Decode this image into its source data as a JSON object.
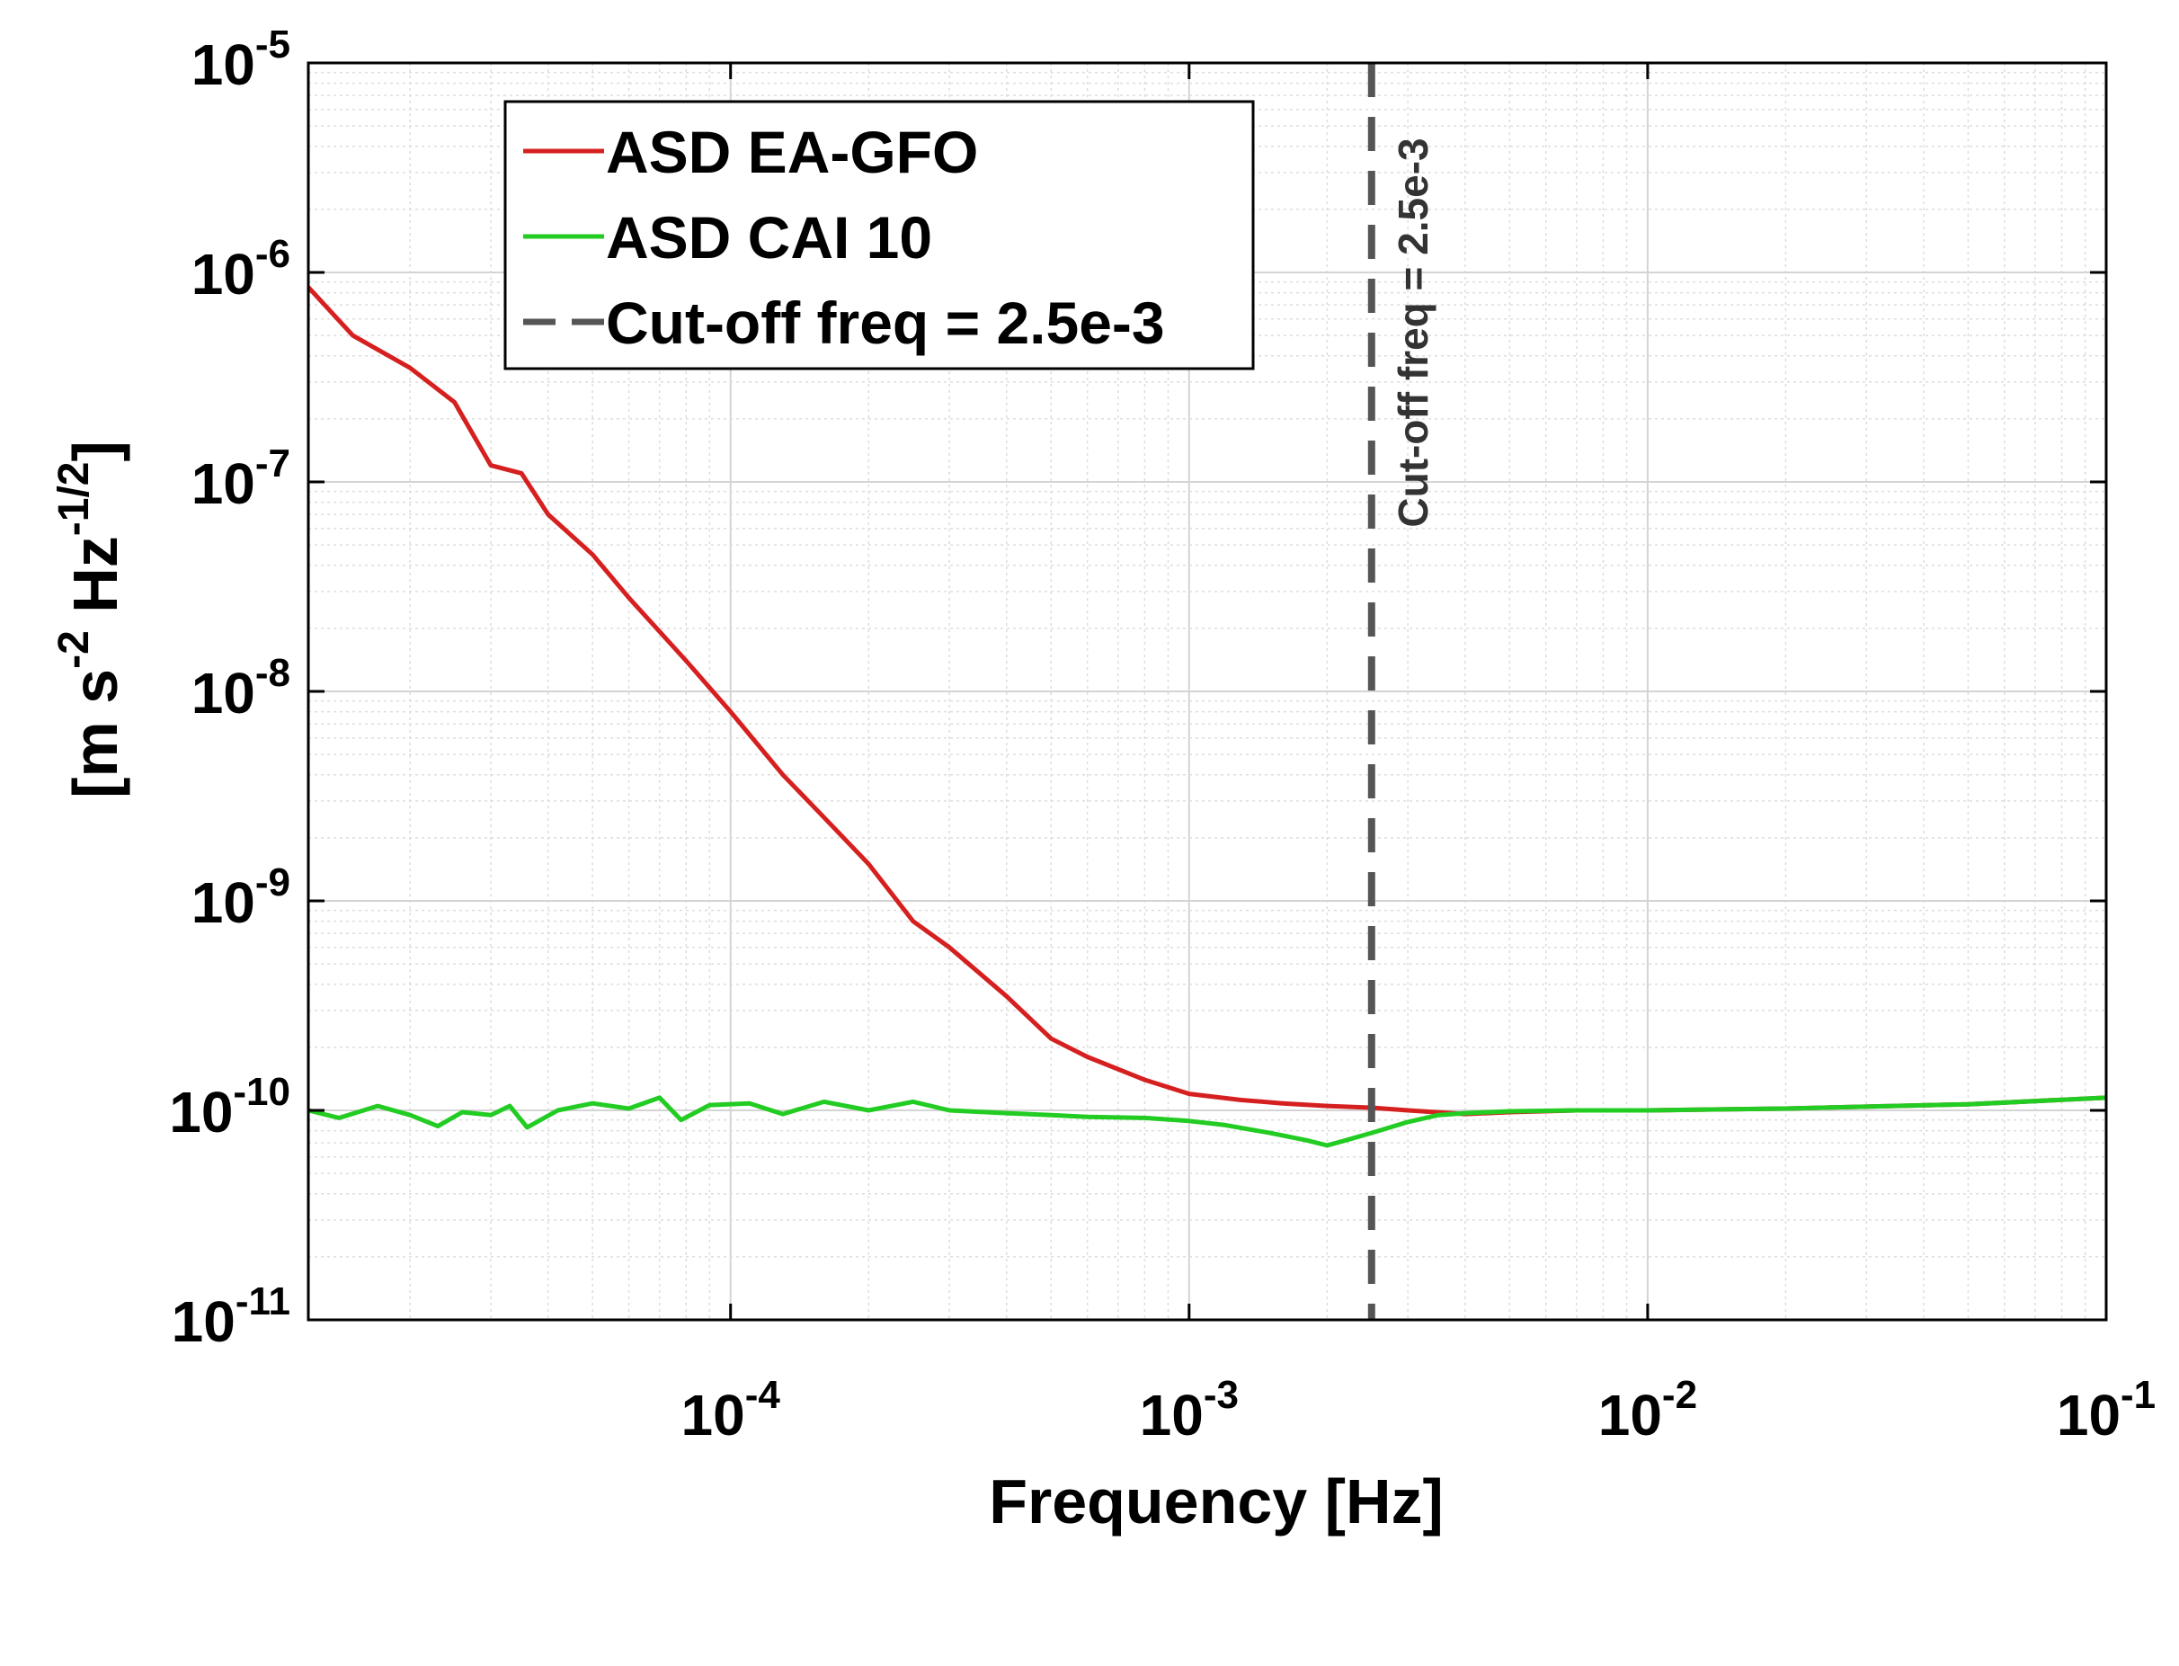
{
  "chart_data": {
    "type": "line",
    "xscale": "log",
    "yscale": "log",
    "xlim": [
      1.2e-05,
      0.1
    ],
    "ylim": [
      1e-11,
      1e-05
    ],
    "xlabel": "Frequency  [Hz]",
    "ylabel_parts": {
      "pre": "[m s",
      "sup1": "-2",
      "mid": " Hz",
      "sup2": "-1/2",
      "post": "]"
    },
    "grid": true,
    "minor_grid": true,
    "legend_position": "top-left",
    "x_ticks": [
      {
        "value": 0.0001,
        "base": "10",
        "exp": "-4"
      },
      {
        "value": 0.001,
        "base": "10",
        "exp": "-3"
      },
      {
        "value": 0.01,
        "base": "10",
        "exp": "-2"
      },
      {
        "value": 0.1,
        "base": "10",
        "exp": "-1"
      }
    ],
    "y_ticks": [
      {
        "value": 1e-05,
        "base": "10",
        "exp": "-5"
      },
      {
        "value": 1e-06,
        "base": "10",
        "exp": "-6"
      },
      {
        "value": 1e-07,
        "base": "10",
        "exp": "-7"
      },
      {
        "value": 1e-08,
        "base": "10",
        "exp": "-8"
      },
      {
        "value": 1e-09,
        "base": "10",
        "exp": "-9"
      },
      {
        "value": 1e-10,
        "base": "10",
        "exp": "-10"
      },
      {
        "value": 1e-11,
        "base": "10",
        "exp": "-11"
      }
    ],
    "series": [
      {
        "name": "ASD EA-GFO",
        "color": "#d62020",
        "style": "solid",
        "points": [
          [
            1.2e-05,
            8.5e-07
          ],
          [
            1.5e-05,
            5e-07
          ],
          [
            2e-05,
            3.5e-07
          ],
          [
            2.5e-05,
            2.4e-07
          ],
          [
            3e-05,
            1.2e-07
          ],
          [
            3.5e-05,
            1.1e-07
          ],
          [
            4e-05,
            7e-08
          ],
          [
            5e-05,
            4.5e-08
          ],
          [
            6e-05,
            2.8e-08
          ],
          [
            8e-05,
            1.4e-08
          ],
          [
            0.0001,
            8e-09
          ],
          [
            0.00013,
            4e-09
          ],
          [
            0.00016,
            2.5e-09
          ],
          [
            0.0002,
            1.5e-09
          ],
          [
            0.00025,
            8e-10
          ],
          [
            0.0003,
            6e-10
          ],
          [
            0.0004,
            3.5e-10
          ],
          [
            0.0005,
            2.2e-10
          ],
          [
            0.0006,
            1.8e-10
          ],
          [
            0.0008,
            1.4e-10
          ],
          [
            0.001,
            1.2e-10
          ],
          [
            0.0013,
            1.12e-10
          ],
          [
            0.0016,
            1.08e-10
          ],
          [
            0.002,
            1.05e-10
          ],
          [
            0.0025,
            1.03e-10
          ],
          [
            0.003,
            1e-10
          ],
          [
            0.004,
            9.6e-11
          ],
          [
            0.005,
            9.8e-11
          ],
          [
            0.007,
            1e-10
          ],
          [
            0.01,
            1e-10
          ],
          [
            0.02,
            1.02e-10
          ],
          [
            0.05,
            1.07e-10
          ],
          [
            0.1,
            1.15e-10
          ]
        ]
      },
      {
        "name": "ASD CAI 10",
        "color": "#22cc22",
        "style": "solid",
        "points": [
          [
            1.2e-05,
            1e-10
          ],
          [
            1.4e-05,
            9.2e-11
          ],
          [
            1.7e-05,
            1.05e-10
          ],
          [
            2e-05,
            9.5e-11
          ],
          [
            2.3e-05,
            8.4e-11
          ],
          [
            2.6e-05,
            9.8e-11
          ],
          [
            3e-05,
            9.5e-11
          ],
          [
            3.3e-05,
            1.05e-10
          ],
          [
            3.6e-05,
            8.3e-11
          ],
          [
            4.2e-05,
            1e-10
          ],
          [
            5e-05,
            1.08e-10
          ],
          [
            6e-05,
            1.02e-10
          ],
          [
            7e-05,
            1.15e-10
          ],
          [
            7.8e-05,
            9e-11
          ],
          [
            9e-05,
            1.06e-10
          ],
          [
            0.00011,
            1.08e-10
          ],
          [
            0.00013,
            9.6e-11
          ],
          [
            0.00016,
            1.1e-10
          ],
          [
            0.0002,
            1e-10
          ],
          [
            0.00025,
            1.1e-10
          ],
          [
            0.0003,
            1e-10
          ],
          [
            0.0004,
            9.7e-11
          ],
          [
            0.0005,
            9.5e-11
          ],
          [
            0.0006,
            9.3e-11
          ],
          [
            0.0008,
            9.2e-11
          ],
          [
            0.001,
            8.9e-11
          ],
          [
            0.0012,
            8.5e-11
          ],
          [
            0.0015,
            7.8e-11
          ],
          [
            0.0018,
            7.2e-11
          ],
          [
            0.002,
            6.8e-11
          ],
          [
            0.0022,
            7.2e-11
          ],
          [
            0.0025,
            7.8e-11
          ],
          [
            0.003,
            8.8e-11
          ],
          [
            0.0035,
            9.5e-11
          ],
          [
            0.004,
            9.7e-11
          ],
          [
            0.005,
            9.9e-11
          ],
          [
            0.007,
            1e-10
          ],
          [
            0.01,
            1e-10
          ],
          [
            0.02,
            1.02e-10
          ],
          [
            0.05,
            1.07e-10
          ],
          [
            0.1,
            1.15e-10
          ]
        ]
      },
      {
        "name": "Cut-off freq = 2.5e-3",
        "color": "#555555",
        "style": "dashed",
        "vertical_x": 0.0025
      }
    ],
    "annotations": [
      {
        "text": "Cut-off freq = 2.5e-3",
        "x": 0.0025,
        "orientation": "vertical"
      }
    ]
  }
}
